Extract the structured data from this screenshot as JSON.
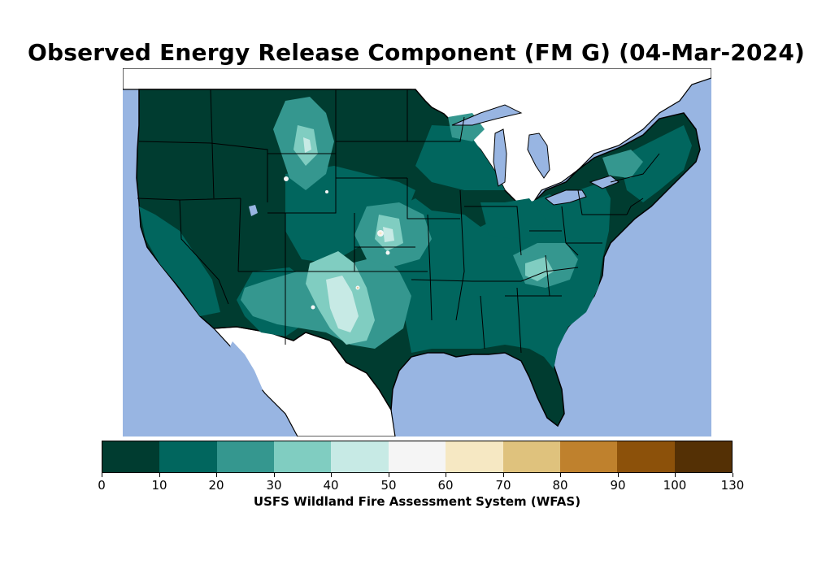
{
  "title": "Observed Energy Release Component (FM G) (04-Mar-2024)",
  "colors": {
    "water": "#98b5e2",
    "land_outside": "#ffffff",
    "border": "#000000"
  },
  "colorbar": {
    "label": "USFS Wildland Fire Assessment System (WFAS)",
    "ticks": [
      "0",
      "10",
      "20",
      "30",
      "40",
      "50",
      "60",
      "70",
      "80",
      "90",
      "100",
      "130"
    ],
    "bins": [
      {
        "range": "0-10",
        "color": "#003c30"
      },
      {
        "range": "10-20",
        "color": "#01665e"
      },
      {
        "range": "20-30",
        "color": "#35978f"
      },
      {
        "range": "30-40",
        "color": "#80cdc1"
      },
      {
        "range": "40-50",
        "color": "#c7eae5"
      },
      {
        "range": "50-60",
        "color": "#f5f5f5"
      },
      {
        "range": "60-70",
        "color": "#f6e8c3"
      },
      {
        "range": "70-80",
        "color": "#dfc27d"
      },
      {
        "range": "80-90",
        "color": "#bf812d"
      },
      {
        "range": "90-100",
        "color": "#8c510a"
      },
      {
        "range": "100-130",
        "color": "#543005"
      }
    ]
  }
}
